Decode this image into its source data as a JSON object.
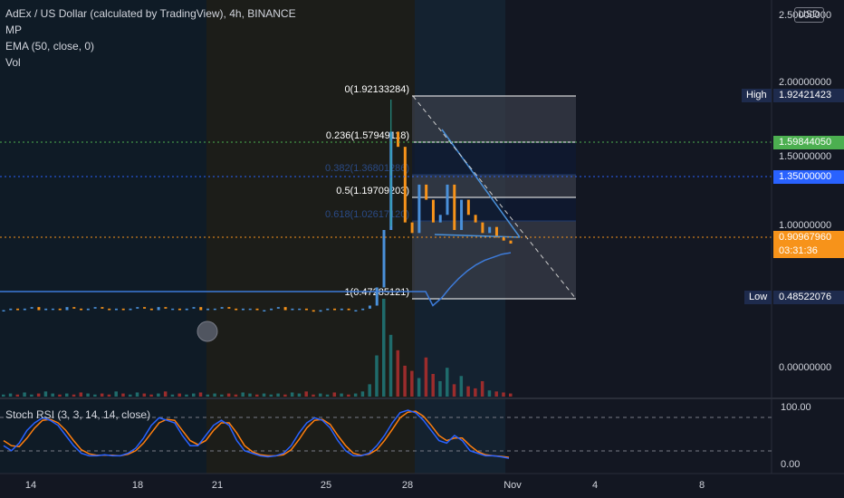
{
  "legend": {
    "title": "AdEx / US Dollar (calculated by TradingView), 4h, BINANCE",
    "mp": "MP",
    "ema": "EMA (50, close, 0)",
    "vol": "Vol"
  },
  "currency": "USD",
  "stoch_label": "Stoch RSI (3, 3, 14, 14, close)",
  "colors": {
    "background": "#131722",
    "up": "#4a90d9",
    "down": "#f7931a",
    "ema": "#3d7bd9",
    "vol_up": "#1f6b6b",
    "vol_down": "#9b2c2c",
    "stoch_k": "#2962ff",
    "stoch_d": "#ff7f0e"
  },
  "chart_data": [
    {
      "type": "line",
      "title": "AdEx / US Dollar (calculated by TradingView), 4h, BINANCE",
      "y_ticks": [
        "2.50000000",
        "2.00000000",
        "1.50000000",
        "1.00000000",
        "0.00000000"
      ],
      "x_ticks": [
        "14",
        "18",
        "21",
        "25",
        "28",
        "Nov",
        "4",
        "8"
      ],
      "price_tags": {
        "high": {
          "label": "High",
          "value": "1.92421423"
        },
        "low": {
          "label": "Low",
          "value": "0.48522076"
        },
        "green": "1.59844050",
        "blue": "1.35000000",
        "current": "0.90967960",
        "countdown": "03:31:36"
      },
      "fib_levels": [
        {
          "label": "0(1.92133284)",
          "value": 1.92133284
        },
        {
          "label": "0.236(1.57949118)",
          "value": 1.57949118
        },
        {
          "label": "0.382(1.36801286)",
          "value": 1.36801286
        },
        {
          "label": "0.5(1.19709203)",
          "value": 1.19709203
        },
        {
          "label": "0.618(1.02617120)",
          "value": 1.0261712
        },
        {
          "label": "1(0.47285121)",
          "value": 0.47285121
        }
      ],
      "price_series": [
        0.47,
        0.48,
        0.47,
        0.48,
        0.49,
        0.47,
        0.48,
        0.48,
        0.47,
        0.49,
        0.48,
        0.47,
        0.48,
        0.49,
        0.48,
        0.47,
        0.48,
        0.47,
        0.48,
        0.49,
        0.48,
        0.47,
        0.49,
        0.48,
        0.48,
        0.47,
        0.48,
        0.49,
        0.47,
        0.48,
        0.48,
        0.49,
        0.48,
        0.47,
        0.48,
        0.48,
        0.47,
        0.47,
        0.48,
        0.49,
        0.47,
        0.48,
        0.48,
        0.47,
        0.46,
        0.47,
        0.48,
        0.47,
        0.48,
        0.47,
        0.47,
        0.48,
        0.5,
        0.62,
        1.0,
        1.65,
        1.55,
        1.05,
        0.98,
        1.3,
        1.2,
        1.05,
        1.1,
        1.3,
        1.0,
        1.2,
        1.1,
        1.05,
        0.98,
        1.02,
        0.95,
        0.93,
        0.91
      ],
      "ema_series": [
        0.5,
        0.55,
        0.62,
        0.68,
        0.73,
        0.77,
        0.8,
        0.82,
        0.84,
        0.85
      ],
      "volume": [
        2,
        3,
        2,
        4,
        2,
        3,
        5,
        3,
        2,
        3,
        2,
        4,
        3,
        2,
        3,
        2,
        5,
        3,
        2,
        4,
        3,
        2,
        3,
        5,
        2,
        3,
        2,
        3,
        4,
        2,
        3,
        2,
        3,
        2,
        4,
        3,
        2,
        3,
        2,
        3,
        2,
        4,
        3,
        5,
        2,
        3,
        2,
        4,
        3,
        2,
        3,
        5,
        12,
        40,
        95,
        60,
        45,
        30,
        25,
        18,
        38,
        22,
        15,
        28,
        12,
        20,
        10,
        8,
        15,
        6,
        5,
        4,
        3
      ]
    },
    {
      "type": "line",
      "title": "Stoch RSI (3, 3, 14, 14, close)",
      "y_ticks": [
        "100.00",
        "0.00"
      ],
      "k": [
        30,
        20,
        35,
        60,
        75,
        85,
        80,
        70,
        50,
        30,
        15,
        10,
        10,
        12,
        10,
        10,
        15,
        25,
        45,
        70,
        85,
        80,
        75,
        50,
        30,
        30,
        50,
        70,
        80,
        70,
        40,
        20,
        15,
        10,
        8,
        10,
        15,
        30,
        55,
        75,
        85,
        80,
        65,
        40,
        20,
        10,
        10,
        15,
        30,
        50,
        75,
        95,
        100,
        95,
        80,
        60,
        40,
        35,
        50,
        40,
        20,
        15,
        10,
        10,
        8,
        5
      ],
      "d": [
        40,
        30,
        28,
        45,
        65,
        80,
        82,
        75,
        60,
        40,
        22,
        14,
        11,
        11,
        11,
        10,
        13,
        20,
        35,
        55,
        75,
        82,
        80,
        60,
        40,
        32,
        40,
        60,
        75,
        75,
        55,
        30,
        18,
        12,
        10,
        10,
        12,
        22,
        42,
        65,
        80,
        82,
        72,
        50,
        30,
        15,
        11,
        13,
        22,
        40,
        62,
        85,
        96,
        98,
        88,
        70,
        50,
        40,
        45,
        45,
        30,
        18,
        12,
        10,
        9,
        7
      ]
    }
  ]
}
